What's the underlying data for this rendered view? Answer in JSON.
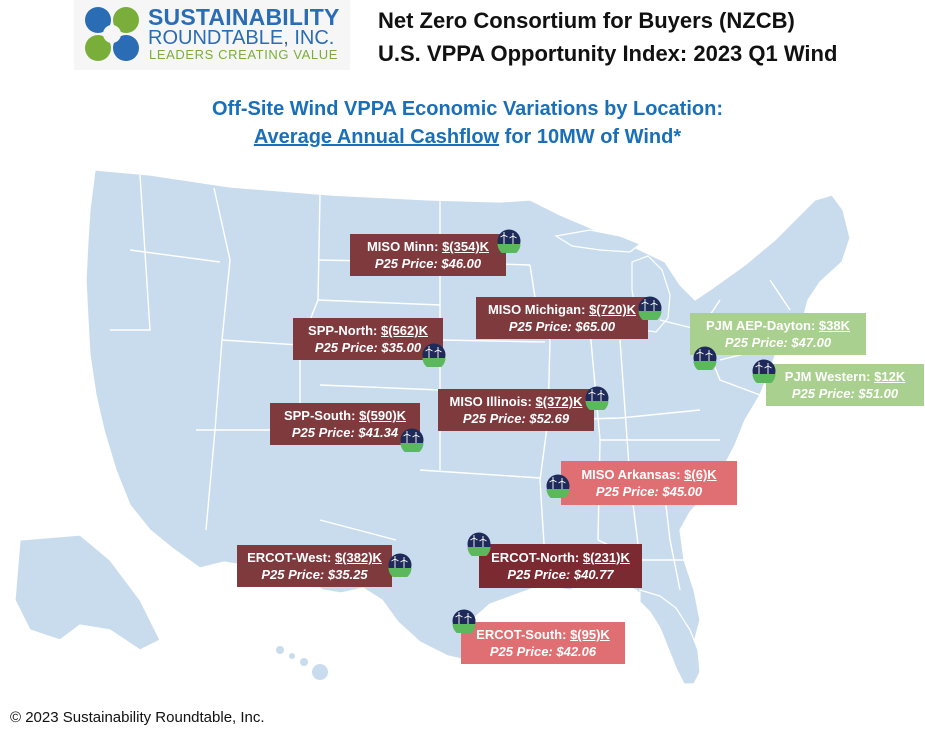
{
  "logo": {
    "line1": "SUSTAINABILITY",
    "line2": "ROUNDTABLE, INC.",
    "line3": "LEADERS CREATING VALUE",
    "colors": {
      "blue": "#2a6db5",
      "green": "#7aae3a"
    }
  },
  "header": {
    "line1": "Net Zero Consortium for Buyers (NZCB)",
    "line2": "U.S. VPPA Opportunity Index: 2023 Q1 Wind"
  },
  "subtitle": {
    "line1": "Off-Site Wind VPPA Economic Variations by Location:",
    "line2_underlined": "Average Annual Cashflow",
    "line2_rest": "for 10MW of Wind*"
  },
  "map": {
    "land_color": "#c9dcee",
    "border_color": "#ffffff",
    "icon_name": "wind-farm-icon"
  },
  "locations": [
    {
      "name": "MISO Minn:",
      "cashflow": "$(354)K",
      "price": "P25 Price: $46.00",
      "color": "#7f3a3e"
    },
    {
      "name": "MISO Michigan:",
      "cashflow": "$(720)K",
      "price": "P25 Price: $65.00",
      "color": "#7f3a3e"
    },
    {
      "name": "SPP-North:",
      "cashflow": "$(562)K",
      "price": "P25 Price: $35.00",
      "color": "#7f3a3e"
    },
    {
      "name": "PJM AEP-Dayton:",
      "cashflow": "$38K",
      "price": "P25 Price: $47.00",
      "color": "#a9d08e"
    },
    {
      "name": "PJM Western:",
      "cashflow": "$12K",
      "price": "P25 Price: $51.00",
      "color": "#a9d08e"
    },
    {
      "name": "MISO Illinois:",
      "cashflow": "$(372)K",
      "price": "P25 Price: $52.69",
      "color": "#7f3a3e"
    },
    {
      "name": "SPP-South:",
      "cashflow": "$(590)K",
      "price": "P25 Price: $41.34",
      "color": "#7f3a3e"
    },
    {
      "name": "MISO Arkansas:",
      "cashflow": "$(6)K",
      "price": "P25 Price: $45.00",
      "color": "#df6f72"
    },
    {
      "name": "ERCOT-West:",
      "cashflow": "$(382)K",
      "price": "P25 Price: $35.25",
      "color": "#7f3a3e"
    },
    {
      "name": "ERCOT-North:",
      "cashflow": "$(231)K",
      "price": "P25 Price: $40.77",
      "color": "#7a2a30"
    },
    {
      "name": "ERCOT-South:",
      "cashflow": "$(95)K",
      "price": "P25 Price: $42.06",
      "color": "#df6f72"
    }
  ],
  "footer": "© 2023 Sustainability Roundtable, Inc."
}
